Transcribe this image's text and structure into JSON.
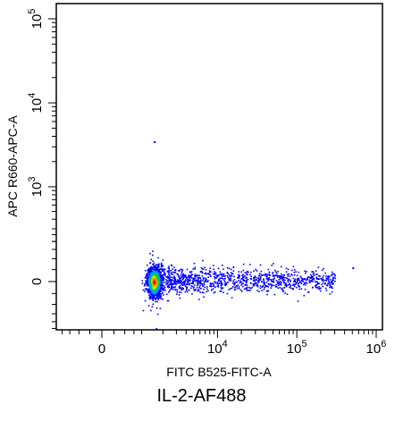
{
  "chart_data": {
    "type": "scatter",
    "style": "flow-cytometry density dot plot (pseudocolor)",
    "title": "",
    "xlabel": "FITC B525-FITC-A",
    "ylabel": "APC R660-APC-A",
    "caption": "IL-2-AF488",
    "x_scale": "biexponential",
    "y_scale": "biexponential",
    "x_ticks": [
      {
        "value": 0,
        "base": "0",
        "exp": ""
      },
      {
        "value": 10000,
        "base": "10",
        "exp": "4"
      },
      {
        "value": 100000,
        "base": "10",
        "exp": "5"
      },
      {
        "value": 1000000,
        "base": "10",
        "exp": "6"
      }
    ],
    "y_ticks": [
      {
        "value": 0,
        "base": "0",
        "exp": ""
      },
      {
        "value": 1000,
        "base": "10",
        "exp": "3"
      },
      {
        "value": 10000,
        "base": "10",
        "exp": "4"
      },
      {
        "value": 100000,
        "base": "10",
        "exp": "5"
      }
    ],
    "population": {
      "core_x": 1500,
      "core_y": 0,
      "x_extent": [
        -300,
        300000
      ],
      "y_extent": [
        -150,
        300
      ],
      "outliers": [
        {
          "x": 1500,
          "y": 3500
        },
        {
          "x": 500000,
          "y": 60
        }
      ]
    },
    "density_colors": [
      "#0000ff",
      "#00a0ff",
      "#00e000",
      "#e0e000",
      "#ff8000",
      "#ff0000"
    ],
    "grid": false,
    "legend": "none"
  }
}
